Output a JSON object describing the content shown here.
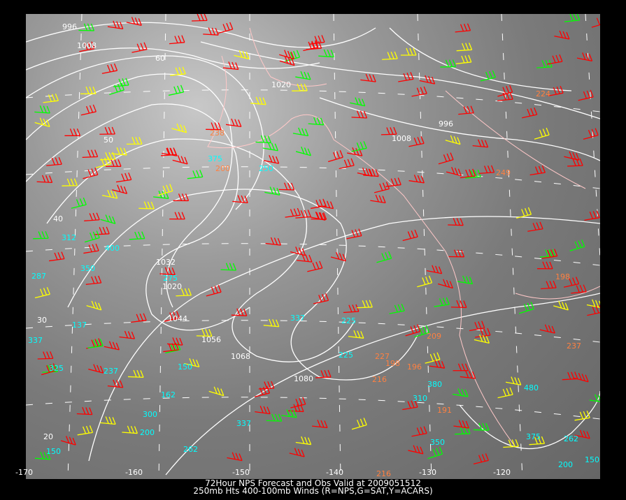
{
  "caption": {
    "line1": "72Hour NPS Forecast and Obs Valid at 2009051512",
    "line2": "250mb Hts 400-100mb Winds (R=NPS,G=SAT,Y=ACARS)"
  },
  "colors": {
    "background": "#000000",
    "contours": "#ffffff",
    "borders": "#ffc8c8",
    "nps": "#ff0000",
    "sat": "#00ff00",
    "acars": "#ffff00",
    "sat_label": "#00ffff",
    "acars_label": "#ff8040"
  },
  "longitude_labels": [
    "-170",
    "-160",
    "-150",
    "-140",
    "-130",
    "-120"
  ],
  "latitude_labels": [
    "60",
    "50",
    "40",
    "30",
    "20"
  ],
  "contour_labels": [
    "996",
    "1008",
    "1020",
    "1032",
    "1044",
    "1056",
    "1068",
    "1080",
    "996",
    "1008",
    "1020"
  ],
  "station_labels_sat": [
    "375",
    "250",
    "312",
    "400",
    "350",
    "287",
    "325",
    "137",
    "337",
    "237",
    "162",
    "150",
    "275",
    "200",
    "262",
    "225",
    "380",
    "310",
    "480",
    "375",
    "350",
    "200",
    "150",
    "262",
    "337",
    "300",
    "337",
    "225",
    "150"
  ],
  "station_labels_acars": [
    "216",
    "238",
    "200",
    "249",
    "237",
    "196",
    "198",
    "191",
    "227",
    "216",
    "209",
    "198",
    "224"
  ]
}
